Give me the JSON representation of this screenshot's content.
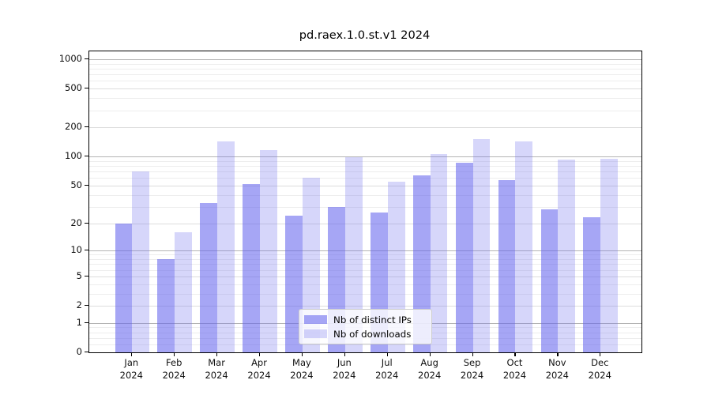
{
  "chart_data": {
    "type": "bar",
    "title": "pd.raex.1.0.st.v1 2024",
    "categories": [
      "Jan",
      "Feb",
      "Mar",
      "Apr",
      "May",
      "Jun",
      "Jul",
      "Aug",
      "Sep",
      "Oct",
      "Nov",
      "Dec"
    ],
    "category_year": "2024",
    "series": [
      {
        "name": "Nb of distinct IPs",
        "color": "rgba(102,102,238,0.58)",
        "values": [
          20,
          8,
          33,
          52,
          24,
          30,
          26,
          64,
          87,
          57,
          28,
          23
        ]
      },
      {
        "name": "Nb of downloads",
        "color": "rgba(118,118,238,0.30)",
        "values": [
          70,
          16,
          142,
          116,
          60,
          98,
          55,
          106,
          152,
          143,
          93,
          95
        ]
      }
    ],
    "yscale": "log1p",
    "yticks": [
      0,
      1,
      2,
      5,
      10,
      20,
      50,
      100,
      200,
      500,
      1000
    ],
    "y_minor_ticks": [
      0.2,
      0.4,
      0.6,
      0.8,
      3,
      4,
      6,
      7,
      8,
      9,
      30,
      40,
      60,
      70,
      80,
      90,
      300,
      400,
      600,
      700,
      800,
      900
    ],
    "ylim": [
      0,
      1200
    ],
    "xlabel": "",
    "ylabel": "",
    "grid": true,
    "legend_position": "lower center",
    "colors": {
      "decade_grid": "#b4b4b4",
      "major_grid": "#dcdcdc",
      "minor_grid": "#ededed",
      "background": "#ffffff"
    }
  }
}
